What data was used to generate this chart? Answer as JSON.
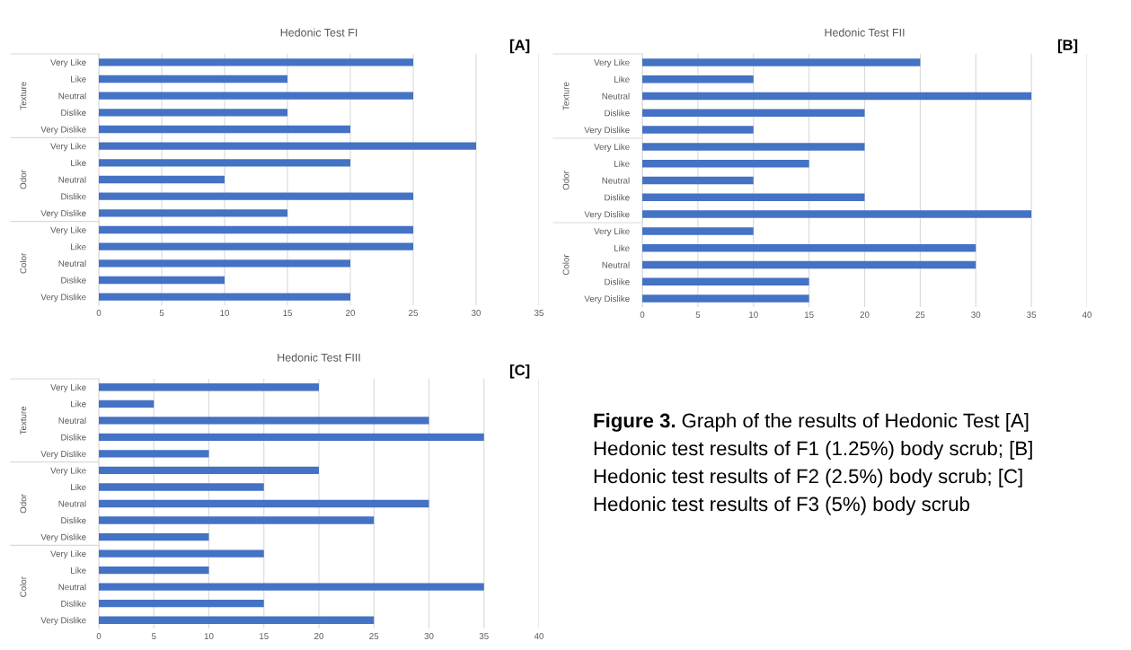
{
  "chart_data": [
    {
      "type": "bar",
      "orientation": "horizontal",
      "title": "Hedonic Test FI",
      "subtitle": "[A]",
      "color": "#4472c4",
      "grid": "x",
      "categories": [
        "Very Like",
        "Like",
        "Neutral",
        "Dislike",
        "Very Dislike",
        "Very Like",
        "Like",
        "Neutral",
        "Dislike",
        "Very Dislike",
        "Very Like",
        "Like",
        "Neutral",
        "Dislike",
        "Very Dislike"
      ],
      "annotations": [
        "Texture",
        "Odor",
        "Color"
      ],
      "values": [
        25,
        15,
        25,
        15,
        20,
        30,
        20,
        10,
        25,
        15,
        25,
        25,
        20,
        10,
        20
      ],
      "xlim": [
        0,
        35
      ],
      "xticks": [
        0,
        5,
        10,
        15,
        20,
        25,
        30,
        35
      ]
    },
    {
      "type": "bar",
      "orientation": "horizontal",
      "title": "Hedonic Test FII",
      "subtitle": "[B]",
      "color": "#4472c4",
      "grid": "x",
      "categories": [
        "Very Like",
        "Like",
        "Neutral",
        "Dislike",
        "Very Dislike",
        "Very Like",
        "Like",
        "Neutral",
        "Dislike",
        "Very Dislike",
        "Very Like",
        "Like",
        "Neutral",
        "Dislike",
        "Very Dislike"
      ],
      "annotations": [
        "Texture",
        "Odor",
        "Color"
      ],
      "values": [
        25,
        10,
        35,
        20,
        10,
        20,
        15,
        10,
        20,
        35,
        10,
        30,
        30,
        15,
        15
      ],
      "xlim": [
        0,
        40
      ],
      "xticks": [
        0,
        5,
        10,
        15,
        20,
        25,
        30,
        35,
        40
      ]
    },
    {
      "type": "bar",
      "orientation": "horizontal",
      "title": "Hedonic Test FIII",
      "subtitle": "[C]",
      "color": "#4472c4",
      "grid": "x",
      "categories": [
        "Very Like",
        "Like",
        "Neutral",
        "Dislike",
        "Very Dislike",
        "Very Like",
        "Like",
        "Neutral",
        "Dislike",
        "Very Dislike",
        "Very Like",
        "Like",
        "Neutral",
        "Dislike",
        "Very Dislike"
      ],
      "annotations": [
        "Texture",
        "Odor",
        "Color"
      ],
      "values": [
        20,
        5,
        30,
        35,
        10,
        20,
        15,
        30,
        25,
        10,
        15,
        10,
        35,
        15,
        25
      ],
      "xlim": [
        0,
        40
      ],
      "xticks": [
        0,
        5,
        10,
        15,
        20,
        25,
        30,
        35,
        40
      ]
    },
    {
      "type": "other",
      "title": "Figure 3.",
      "annotations": [
        "Graph of the results of Hedonic Test [A] Hedonic test results of F1 (1.25%) body scrub; [B] Hedonic test results of F2 (2.5%) body scrub; [C] Hedonic test results of F3 (5%) body scrub"
      ]
    }
  ]
}
